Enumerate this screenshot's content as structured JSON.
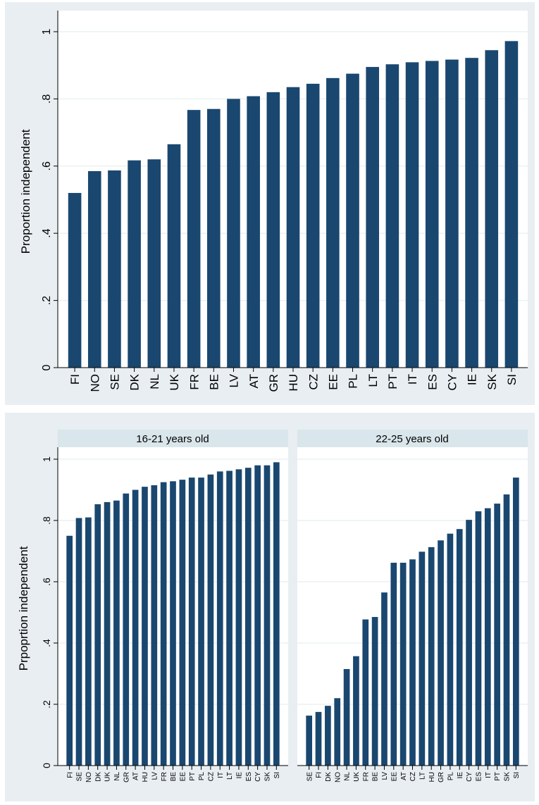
{
  "colors": {
    "bar": "#1a476f",
    "panel_bg": "#e8eef2",
    "plot_bg": "#ffffff",
    "grid": "#eaf2f3",
    "strip": "#d9e6eb",
    "axis": "#000000"
  },
  "chart_data": [
    {
      "type": "bar",
      "ylabel": "Proportion independent",
      "ylim": [
        0,
        1
      ],
      "yticks": [
        0,
        0.2,
        0.4,
        0.6,
        0.8,
        1
      ],
      "ytick_labels": [
        "0",
        ".2",
        ".4",
        ".6",
        ".8",
        "1"
      ],
      "grid": true,
      "categories": [
        "FI",
        "NO",
        "SE",
        "DK",
        "NL",
        "UK",
        "FR",
        "BE",
        "LV",
        "AT",
        "GR",
        "HU",
        "CZ",
        "EE",
        "PL",
        "LT",
        "PT",
        "IT",
        "ES",
        "CY",
        "IE",
        "SK",
        "SI"
      ],
      "values": [
        0.52,
        0.585,
        0.587,
        0.617,
        0.62,
        0.665,
        0.767,
        0.77,
        0.8,
        0.808,
        0.82,
        0.835,
        0.845,
        0.862,
        0.875,
        0.895,
        0.903,
        0.909,
        0.913,
        0.917,
        0.922,
        0.945,
        0.972
      ]
    },
    {
      "type": "bar",
      "title": "16-21 years old",
      "ylabel": "Prpoprtion independent",
      "ylim": [
        0,
        1
      ],
      "yticks": [
        0,
        0.2,
        0.4,
        0.6,
        0.8,
        1
      ],
      "ytick_labels": [
        "0",
        ".2",
        ".4",
        ".6",
        ".8",
        "1"
      ],
      "grid": true,
      "categories": [
        "FI",
        "SE",
        "NO",
        "DK",
        "UK",
        "NL",
        "GR",
        "AT",
        "HU",
        "LV",
        "FR",
        "BE",
        "EE",
        "PT",
        "PL",
        "CZ",
        "IT",
        "LT",
        "IE",
        "ES",
        "CY",
        "SK",
        "SI"
      ],
      "values": [
        0.75,
        0.808,
        0.81,
        0.853,
        0.86,
        0.865,
        0.888,
        0.9,
        0.91,
        0.915,
        0.925,
        0.928,
        0.933,
        0.94,
        0.94,
        0.95,
        0.96,
        0.962,
        0.967,
        0.972,
        0.98,
        0.98,
        0.99
      ]
    },
    {
      "type": "bar",
      "title": "22-25 years old",
      "ylim": [
        0,
        1
      ],
      "grid": true,
      "categories": [
        "SE",
        "FI",
        "DK",
        "NO",
        "NL",
        "UK",
        "FR",
        "BE",
        "LV",
        "EE",
        "AT",
        "CZ",
        "LT",
        "HU",
        "GR",
        "PL",
        "IE",
        "CY",
        "ES",
        "IT",
        "PT",
        "SK",
        "SI"
      ],
      "values": [
        0.163,
        0.175,
        0.195,
        0.22,
        0.315,
        0.357,
        0.477,
        0.485,
        0.565,
        0.662,
        0.662,
        0.673,
        0.698,
        0.713,
        0.735,
        0.757,
        0.772,
        0.802,
        0.83,
        0.84,
        0.855,
        0.885,
        0.94
      ]
    }
  ]
}
